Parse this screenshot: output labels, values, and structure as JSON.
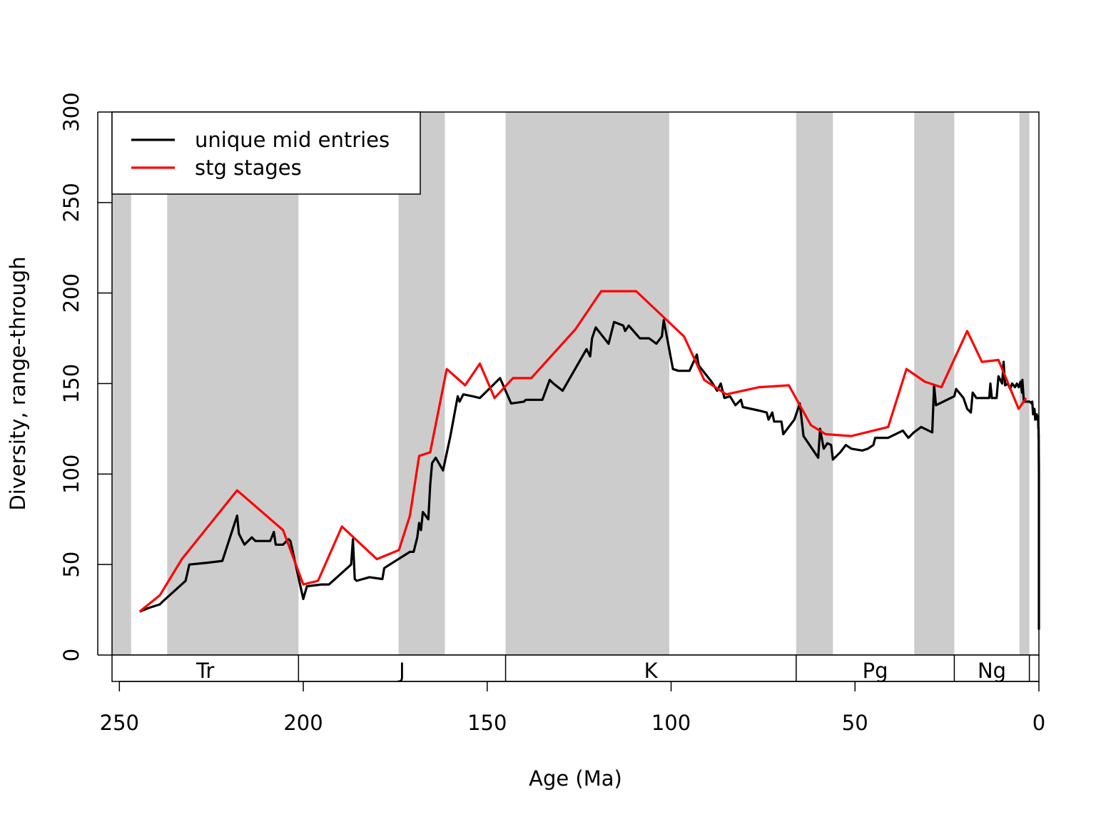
{
  "chart_data": {
    "type": "line",
    "xlabel": "Age (Ma)",
    "ylabel": "Diversity, range-through",
    "xlim": [
      252,
      0
    ],
    "ylim": [
      0,
      300
    ],
    "x_ticks": [
      250,
      200,
      150,
      100,
      50,
      0
    ],
    "y_ticks": [
      0,
      50,
      100,
      150,
      200,
      250,
      300
    ],
    "grid": false,
    "legend_position": "top-left",
    "shaded_bands": [
      [
        252,
        246.8
      ],
      [
        237,
        201.3
      ],
      [
        174.1,
        161.5
      ],
      [
        145,
        100.5
      ],
      [
        66,
        56
      ],
      [
        33.9,
        23
      ],
      [
        5.3,
        2.6
      ]
    ],
    "periods": [
      {
        "label": "Tr",
        "start": 252,
        "end": 201.3
      },
      {
        "label": "J",
        "start": 201.3,
        "end": 145
      },
      {
        "label": "K",
        "start": 145,
        "end": 66
      },
      {
        "label": "Pg",
        "start": 66,
        "end": 23
      },
      {
        "label": "Ng",
        "start": 23,
        "end": 2.6
      },
      {
        "label": "",
        "start": 2.6,
        "end": 0
      }
    ],
    "series": [
      {
        "name": "unique mid entries",
        "color": "#000000",
        "points": [
          [
            244.5,
            24
          ],
          [
            242,
            26
          ],
          [
            239,
            28
          ],
          [
            238,
            30
          ],
          [
            232,
            41
          ],
          [
            231,
            50
          ],
          [
            226,
            51
          ],
          [
            222,
            52
          ],
          [
            218,
            77
          ],
          [
            217.5,
            67
          ],
          [
            216,
            61
          ],
          [
            214,
            65
          ],
          [
            213,
            63
          ],
          [
            209,
            63
          ],
          [
            208,
            68
          ],
          [
            207.5,
            61
          ],
          [
            205.5,
            61
          ],
          [
            204,
            64
          ],
          [
            203.5,
            63
          ],
          [
            200,
            31
          ],
          [
            199,
            38
          ],
          [
            195,
            39
          ],
          [
            193,
            39
          ],
          [
            187,
            50
          ],
          [
            186.5,
            64
          ],
          [
            186,
            42
          ],
          [
            185.5,
            41
          ],
          [
            182,
            43
          ],
          [
            178.5,
            42
          ],
          [
            178,
            48
          ],
          [
            176.5,
            50
          ],
          [
            171,
            57
          ],
          [
            170,
            57
          ],
          [
            169,
            65
          ],
          [
            168.5,
            73
          ],
          [
            168,
            69
          ],
          [
            167.5,
            79
          ],
          [
            166,
            75
          ],
          [
            165.5,
            94
          ],
          [
            165,
            106
          ],
          [
            164,
            109
          ],
          [
            162,
            102
          ],
          [
            160,
            121
          ],
          [
            158,
            143
          ],
          [
            157.5,
            140
          ],
          [
            156.5,
            144
          ],
          [
            154,
            143
          ],
          [
            152,
            142
          ],
          [
            148,
            150
          ],
          [
            146.5,
            153
          ],
          [
            143.5,
            139
          ],
          [
            140,
            140
          ],
          [
            139.5,
            141
          ],
          [
            135,
            141
          ],
          [
            133,
            152
          ],
          [
            132,
            150
          ],
          [
            129.5,
            146
          ],
          [
            123,
            169
          ],
          [
            122,
            165
          ],
          [
            121.5,
            175
          ],
          [
            120.5,
            181
          ],
          [
            117,
            172
          ],
          [
            115.5,
            184
          ],
          [
            113,
            182
          ],
          [
            112.5,
            179
          ],
          [
            111.5,
            182
          ],
          [
            108.5,
            175
          ],
          [
            106,
            175
          ],
          [
            104,
            172
          ],
          [
            102.5,
            176
          ],
          [
            102,
            185
          ],
          [
            99.5,
            158
          ],
          [
            98,
            157
          ],
          [
            95,
            157
          ],
          [
            93,
            166
          ],
          [
            92.5,
            160
          ],
          [
            89,
            151
          ],
          [
            87.5,
            146
          ],
          [
            86.5,
            150
          ],
          [
            85.5,
            142
          ],
          [
            84,
            143
          ],
          [
            82.5,
            138
          ],
          [
            81,
            141
          ],
          [
            80.5,
            137
          ],
          [
            76,
            135
          ],
          [
            74,
            134
          ],
          [
            73.5,
            130
          ],
          [
            72.5,
            134
          ],
          [
            72,
            129
          ],
          [
            70,
            129
          ],
          [
            69.5,
            122
          ],
          [
            66.5,
            130
          ],
          [
            65,
            139
          ],
          [
            64,
            121
          ],
          [
            60,
            109
          ],
          [
            59.5,
            125
          ],
          [
            58.5,
            114
          ],
          [
            57.5,
            117
          ],
          [
            56.5,
            116
          ],
          [
            56,
            108
          ],
          [
            54,
            112
          ],
          [
            52.5,
            116
          ],
          [
            51,
            114
          ],
          [
            48,
            113
          ],
          [
            46.5,
            114
          ],
          [
            45,
            116
          ],
          [
            44.5,
            120
          ],
          [
            41,
            120
          ],
          [
            37,
            124
          ],
          [
            35.5,
            120
          ],
          [
            34,
            123
          ],
          [
            32,
            126
          ],
          [
            29,
            123
          ],
          [
            28.5,
            149
          ],
          [
            28,
            138
          ],
          [
            23,
            143
          ],
          [
            22.5,
            147
          ],
          [
            20.5,
            142
          ],
          [
            19.5,
            136
          ],
          [
            18.5,
            134
          ],
          [
            18,
            145
          ],
          [
            17,
            142
          ],
          [
            13.5,
            142
          ],
          [
            13.2,
            150
          ],
          [
            12.8,
            142
          ],
          [
            11.5,
            142
          ],
          [
            11,
            154
          ],
          [
            10,
            150
          ],
          [
            9.6,
            162
          ],
          [
            9.2,
            149
          ],
          [
            8.5,
            150
          ],
          [
            7.8,
            147
          ],
          [
            7.3,
            150
          ],
          [
            6.5,
            148
          ],
          [
            6,
            150
          ],
          [
            5.5,
            148
          ],
          [
            5,
            151
          ],
          [
            4.6,
            145
          ],
          [
            4.5,
            152
          ],
          [
            4.1,
            140
          ],
          [
            2.5,
            140
          ],
          [
            2,
            139
          ],
          [
            1.8,
            140
          ],
          [
            1.6,
            133
          ],
          [
            1.2,
            136
          ],
          [
            1,
            130
          ],
          [
            0.6,
            133
          ],
          [
            0.4,
            130
          ],
          [
            0.2,
            132
          ],
          [
            0.15,
            125
          ],
          [
            0.1,
            126
          ],
          [
            0.07,
            120
          ],
          [
            0.05,
            122
          ],
          [
            0.035,
            111
          ],
          [
            0.02,
            107
          ],
          [
            0.012,
            108
          ],
          [
            0.006,
            100
          ],
          [
            0.0,
            14
          ]
        ]
      },
      {
        "name": "stg stages",
        "color": "#ff0000",
        "points": [
          [
            244.5,
            24
          ],
          [
            239,
            33
          ],
          [
            233,
            53
          ],
          [
            218,
            91
          ],
          [
            205.5,
            69
          ],
          [
            200,
            39
          ],
          [
            196,
            41
          ],
          [
            189.5,
            71
          ],
          [
            180,
            53
          ],
          [
            174,
            58
          ],
          [
            171,
            77
          ],
          [
            168.5,
            110
          ],
          [
            165.5,
            112
          ],
          [
            161,
            158
          ],
          [
            156,
            149
          ],
          [
            152,
            161
          ],
          [
            148,
            142
          ],
          [
            143,
            153
          ],
          [
            138,
            153
          ],
          [
            126,
            180
          ],
          [
            119,
            201
          ],
          [
            109.5,
            201
          ],
          [
            96.5,
            176
          ],
          [
            91,
            152
          ],
          [
            85,
            144
          ],
          [
            76,
            148
          ],
          [
            68,
            149
          ],
          [
            62,
            127
          ],
          [
            58,
            122
          ],
          [
            51,
            121
          ],
          [
            41,
            126
          ],
          [
            36,
            158
          ],
          [
            31,
            151
          ],
          [
            26.5,
            148
          ],
          [
            19.5,
            179
          ],
          [
            15.5,
            162
          ],
          [
            11,
            163
          ],
          [
            5.5,
            136
          ],
          [
            3.5,
            142
          ]
        ]
      }
    ]
  }
}
